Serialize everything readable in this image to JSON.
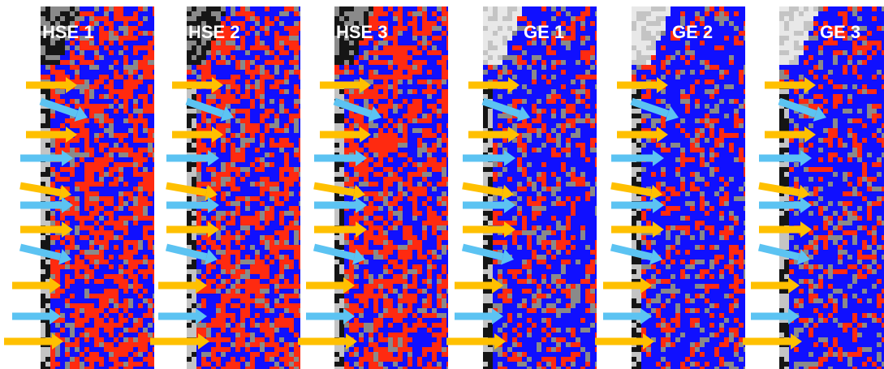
{
  "panels": [
    {
      "label": "HSE 1"
    },
    {
      "label": "HSE 2"
    },
    {
      "label": "HSE 3"
    },
    {
      "label": "GE 1"
    },
    {
      "label": "GE 2"
    },
    {
      "label": "GE 3"
    }
  ]
}
